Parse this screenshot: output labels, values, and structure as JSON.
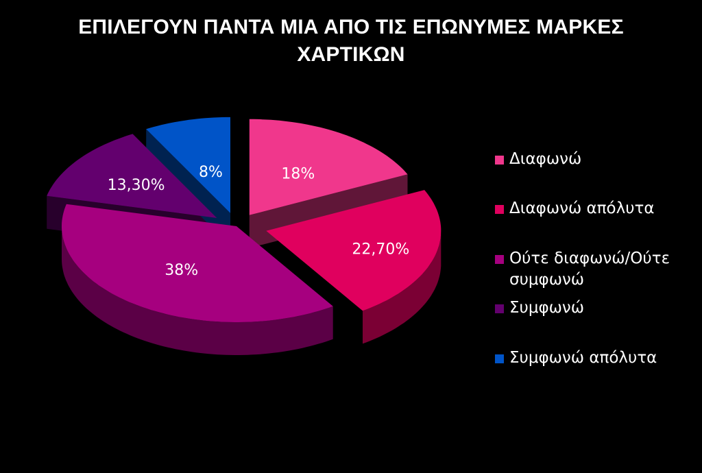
{
  "chart_data": {
    "type": "pie",
    "style": "3d-exploded",
    "title_lines": [
      "ΕΠΙΛΕΓΟΥΝ ΠΑΝΤΑ ΜΙΑ ΑΠΟ ΤΙΣ ΕΠΩΝΥΜΕΣ ΜΑΡΚΕΣ",
      "ΧΑΡΤΙΚΩΝ"
    ],
    "categories": [
      "Διαφωνώ",
      "Διαφωνώ απόλυτα",
      "Ούτε διαφωνώ/Ούτε συμφωνώ",
      "Συμφωνώ",
      "Συμφωνώ απόλυτα"
    ],
    "values": [
      18,
      22.7,
      38,
      13.3,
      8
    ],
    "data_labels": [
      "18%",
      "22,70%",
      "38%",
      "13,30%",
      "8%"
    ],
    "colors": [
      "#f0378c",
      "#e0005e",
      "#a6007f",
      "#63006e",
      "#0054c8"
    ],
    "legend_position": "right"
  }
}
